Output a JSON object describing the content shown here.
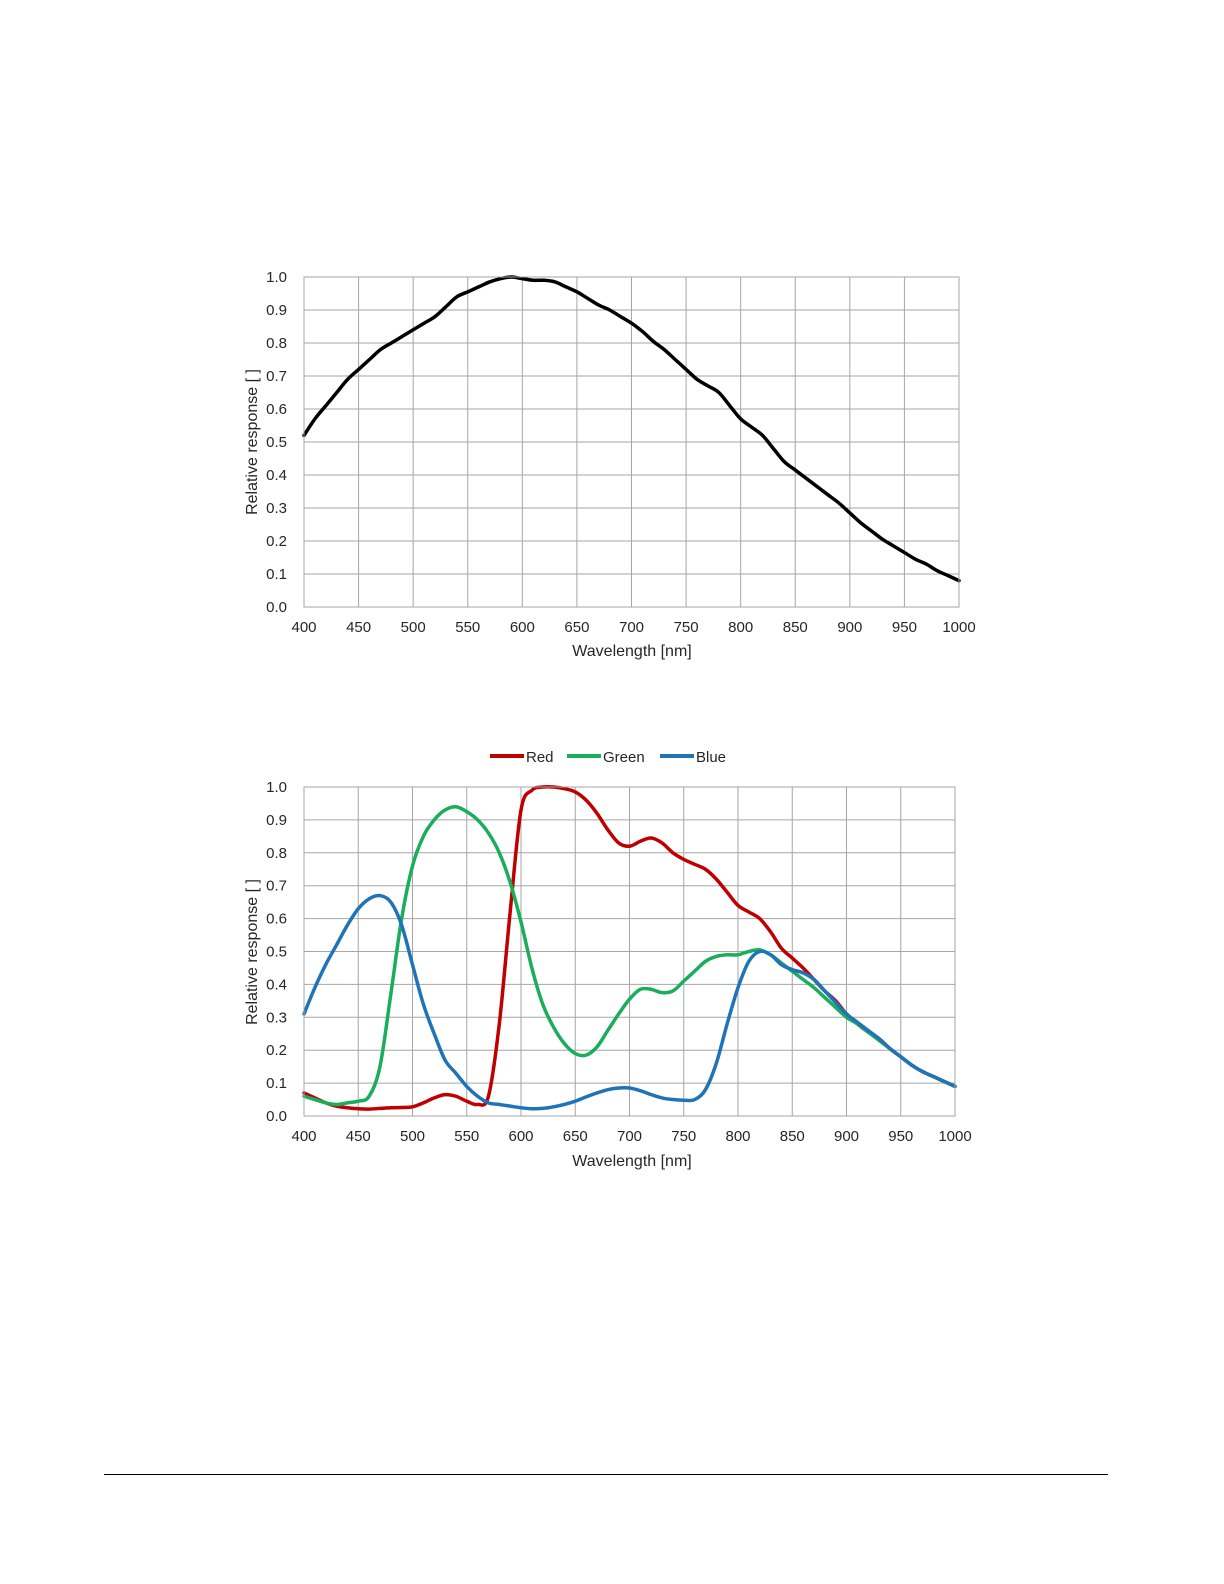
{
  "chart_data": [
    {
      "type": "line",
      "xlabel": "Wavelength [nm]",
      "ylabel": "Relative response [ ]",
      "xlim": [
        400,
        1000
      ],
      "ylim": [
        0,
        1
      ],
      "xticks": [
        400,
        450,
        500,
        550,
        600,
        650,
        700,
        750,
        800,
        850,
        900,
        950,
        1000
      ],
      "yticks": [
        "0.0",
        "0.1",
        "0.2",
        "0.3",
        "0.4",
        "0.5",
        "0.6",
        "0.7",
        "0.8",
        "0.9",
        "1.0"
      ],
      "grid": true,
      "series": [
        {
          "color": "#000000",
          "x": [
            400,
            410,
            420,
            430,
            440,
            450,
            460,
            470,
            480,
            490,
            500,
            510,
            520,
            530,
            540,
            550,
            560,
            570,
            580,
            590,
            600,
            610,
            620,
            630,
            640,
            650,
            660,
            670,
            680,
            690,
            700,
            710,
            720,
            730,
            740,
            750,
            760,
            770,
            780,
            790,
            800,
            810,
            820,
            830,
            840,
            850,
            860,
            870,
            880,
            890,
            900,
            910,
            920,
            930,
            940,
            950,
            960,
            970,
            980,
            990,
            1000
          ],
          "y": [
            0.52,
            0.57,
            0.61,
            0.65,
            0.69,
            0.72,
            0.75,
            0.78,
            0.8,
            0.82,
            0.84,
            0.86,
            0.88,
            0.91,
            0.94,
            0.955,
            0.97,
            0.985,
            0.995,
            1.0,
            0.995,
            0.99,
            0.99,
            0.985,
            0.97,
            0.955,
            0.935,
            0.915,
            0.9,
            0.88,
            0.86,
            0.835,
            0.805,
            0.78,
            0.75,
            0.72,
            0.69,
            0.67,
            0.65,
            0.61,
            0.57,
            0.545,
            0.52,
            0.48,
            0.44,
            0.415,
            0.39,
            0.365,
            0.34,
            0.315,
            0.285,
            0.255,
            0.23,
            0.205,
            0.185,
            0.165,
            0.145,
            0.13,
            0.11,
            0.095,
            0.08
          ]
        }
      ]
    },
    {
      "type": "line",
      "xlabel": "Wavelength [nm]",
      "ylabel": "Relative response [ ]",
      "xlim": [
        400,
        1000
      ],
      "ylim": [
        0,
        1
      ],
      "xticks": [
        400,
        450,
        500,
        550,
        600,
        650,
        700,
        750,
        800,
        850,
        900,
        950,
        1000
      ],
      "yticks": [
        "0.0",
        "0.1",
        "0.2",
        "0.3",
        "0.4",
        "0.5",
        "0.6",
        "0.7",
        "0.8",
        "0.9",
        "1.0"
      ],
      "grid": true,
      "legend": "top",
      "series": [
        {
          "name": "Red",
          "color": "#C00000",
          "x": [
            400,
            410,
            420,
            430,
            440,
            450,
            460,
            470,
            480,
            490,
            500,
            510,
            520,
            530,
            540,
            550,
            560,
            570,
            580,
            590,
            600,
            610,
            620,
            630,
            640,
            650,
            660,
            670,
            680,
            690,
            700,
            710,
            720,
            730,
            740,
            750,
            760,
            770,
            780,
            790,
            800,
            810,
            820,
            830,
            840,
            850,
            860,
            870,
            880,
            890,
            900,
            910,
            920,
            930,
            940,
            950,
            960,
            970,
            980,
            990,
            1000
          ],
          "y": [
            0.07,
            0.055,
            0.04,
            0.03,
            0.025,
            0.022,
            0.021,
            0.023,
            0.025,
            0.026,
            0.028,
            0.04,
            0.055,
            0.065,
            0.06,
            0.045,
            0.035,
            0.06,
            0.28,
            0.62,
            0.93,
            0.99,
            1.0,
            1.0,
            0.995,
            0.985,
            0.96,
            0.92,
            0.87,
            0.83,
            0.82,
            0.835,
            0.845,
            0.83,
            0.8,
            0.78,
            0.765,
            0.75,
            0.72,
            0.68,
            0.64,
            0.62,
            0.6,
            0.56,
            0.51,
            0.48,
            0.45,
            0.415,
            0.38,
            0.35,
            0.31,
            0.28,
            0.255,
            0.235,
            0.205,
            0.18,
            0.155,
            0.135,
            0.12,
            0.105,
            0.09
          ]
        },
        {
          "name": "Green",
          "color": "#1AAE5C",
          "x": [
            400,
            410,
            420,
            430,
            440,
            450,
            460,
            470,
            480,
            490,
            500,
            510,
            520,
            530,
            540,
            550,
            560,
            570,
            580,
            590,
            600,
            610,
            620,
            630,
            640,
            650,
            660,
            670,
            680,
            690,
            700,
            710,
            720,
            730,
            740,
            750,
            760,
            770,
            780,
            790,
            800,
            810,
            820,
            830,
            840,
            850,
            860,
            870,
            880,
            890,
            900,
            910,
            920,
            930,
            940,
            950,
            960,
            970,
            980,
            990,
            1000
          ],
          "y": [
            0.06,
            0.05,
            0.04,
            0.035,
            0.04,
            0.045,
            0.06,
            0.15,
            0.37,
            0.6,
            0.76,
            0.85,
            0.9,
            0.93,
            0.94,
            0.925,
            0.9,
            0.86,
            0.8,
            0.71,
            0.59,
            0.45,
            0.34,
            0.27,
            0.22,
            0.19,
            0.185,
            0.21,
            0.26,
            0.31,
            0.355,
            0.385,
            0.385,
            0.375,
            0.38,
            0.41,
            0.44,
            0.47,
            0.485,
            0.49,
            0.49,
            0.5,
            0.505,
            0.49,
            0.465,
            0.44,
            0.415,
            0.39,
            0.36,
            0.33,
            0.3,
            0.28,
            0.255,
            0.23,
            0.205,
            0.18,
            0.155,
            0.135,
            0.12,
            0.105,
            0.09
          ]
        },
        {
          "name": "Blue",
          "color": "#1F73B7",
          "x": [
            400,
            410,
            420,
            430,
            440,
            450,
            460,
            470,
            480,
            490,
            500,
            510,
            520,
            530,
            540,
            550,
            560,
            570,
            580,
            590,
            600,
            610,
            620,
            630,
            640,
            650,
            660,
            670,
            680,
            690,
            700,
            710,
            720,
            730,
            740,
            750,
            760,
            770,
            780,
            790,
            800,
            810,
            820,
            830,
            840,
            850,
            860,
            870,
            880,
            890,
            900,
            910,
            920,
            930,
            940,
            950,
            960,
            970,
            980,
            990,
            1000
          ],
          "y": [
            0.31,
            0.39,
            0.46,
            0.52,
            0.58,
            0.63,
            0.66,
            0.67,
            0.65,
            0.58,
            0.46,
            0.34,
            0.25,
            0.17,
            0.13,
            0.09,
            0.06,
            0.04,
            0.035,
            0.03,
            0.025,
            0.022,
            0.023,
            0.028,
            0.035,
            0.045,
            0.058,
            0.07,
            0.08,
            0.085,
            0.085,
            0.077,
            0.065,
            0.055,
            0.05,
            0.048,
            0.05,
            0.08,
            0.16,
            0.28,
            0.39,
            0.47,
            0.5,
            0.49,
            0.46,
            0.445,
            0.435,
            0.415,
            0.38,
            0.345,
            0.31,
            0.285,
            0.26,
            0.235,
            0.205,
            0.18,
            0.155,
            0.135,
            0.12,
            0.105,
            0.09
          ]
        }
      ]
    }
  ]
}
